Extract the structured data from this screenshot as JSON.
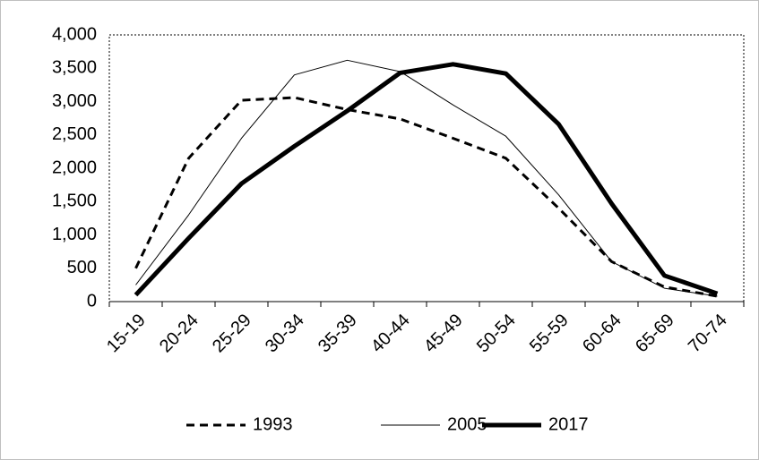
{
  "chart_data": {
    "type": "line",
    "categories": [
      "15-19",
      "20-24",
      "25-29",
      "30-34",
      "35-39",
      "40-44",
      "45-49",
      "50-54",
      "55-59",
      "60-64",
      "65-69",
      "70-74"
    ],
    "series": [
      {
        "name": "1993",
        "color": "#000000",
        "style": "dashed",
        "width": 3,
        "values": [
          500,
          2150,
          3020,
          3060,
          2880,
          2740,
          2450,
          2150,
          1400,
          600,
          220,
          80
        ]
      },
      {
        "name": "2005",
        "color": "#000000",
        "style": "solid",
        "width": 1,
        "values": [
          250,
          1300,
          2450,
          3400,
          3620,
          3450,
          2950,
          2480,
          1600,
          600,
          200,
          80
        ]
      },
      {
        "name": "2017",
        "color": "#000000",
        "style": "solid",
        "width": 5,
        "values": [
          100,
          950,
          1770,
          2330,
          2860,
          3430,
          3560,
          3420,
          2660,
          1470,
          390,
          120
        ]
      }
    ],
    "ylim": [
      0,
      4000
    ],
    "yticks": [
      0,
      500,
      {
        "value": 1000,
        "label": "1,000"
      },
      {
        "value": 1500,
        "label": "1,500"
      },
      {
        "value": 2000,
        "label": "2,000"
      },
      {
        "value": 2500,
        "label": "2,500"
      },
      {
        "value": 3000,
        "label": "3,000"
      },
      {
        "value": 3500,
        "label": "3,500"
      },
      {
        "value": 4000,
        "label": "4,000"
      }
    ],
    "legend": "bottom",
    "grid": false
  }
}
